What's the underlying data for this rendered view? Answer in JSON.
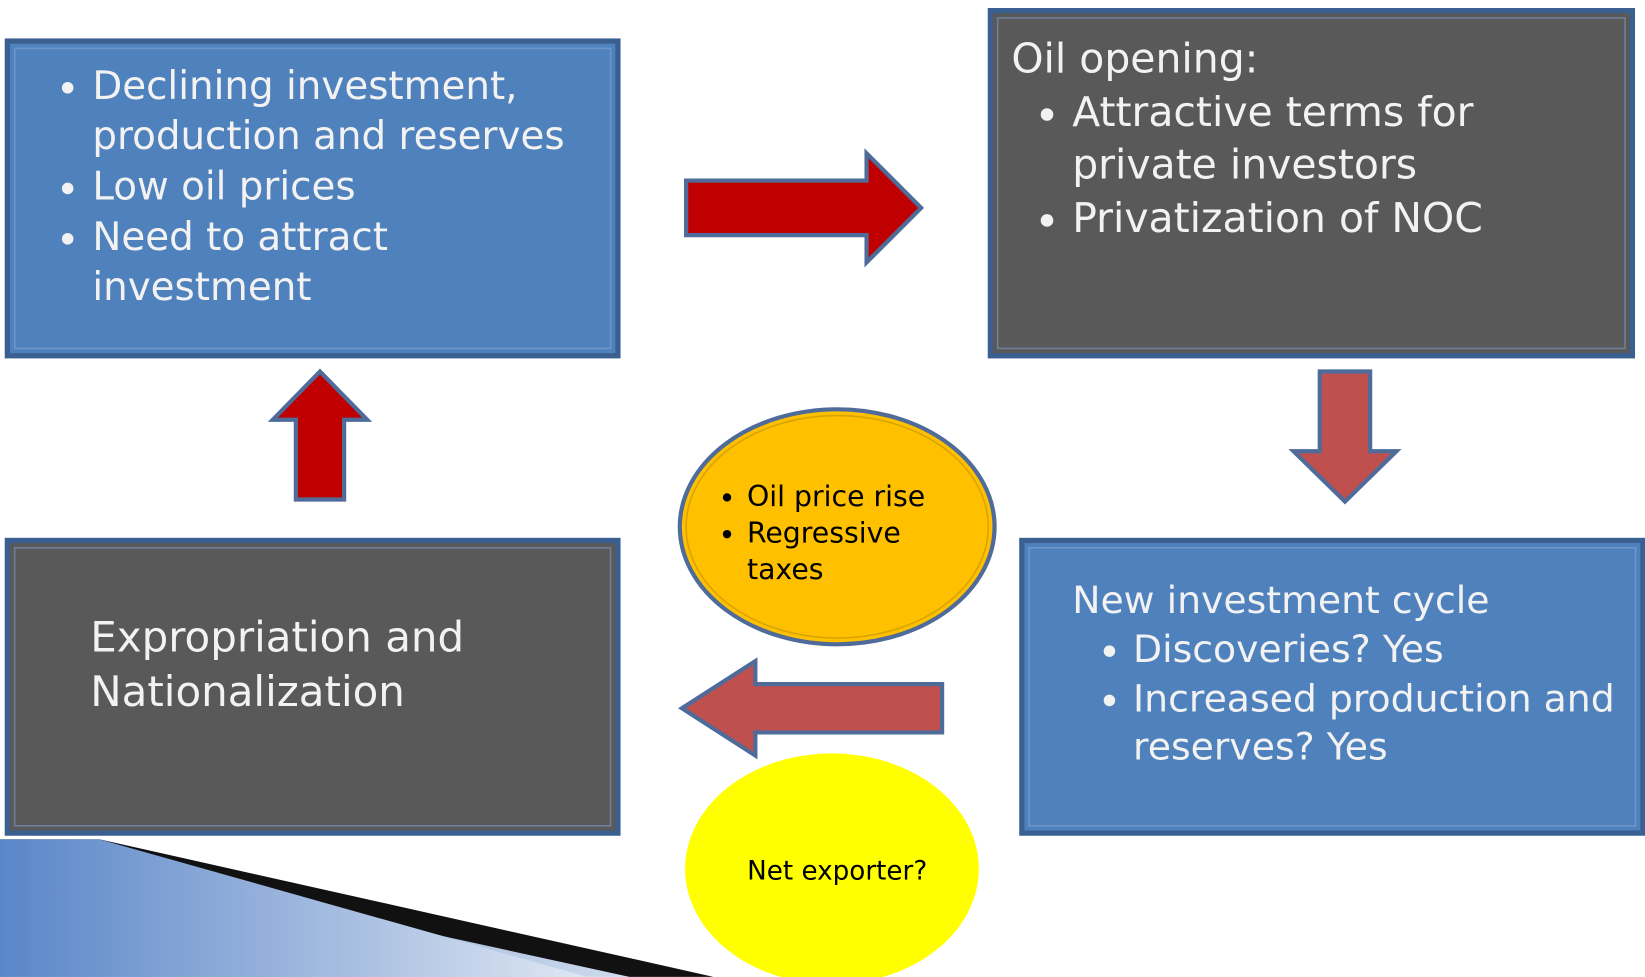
{
  "boxes": [
    {
      "items": [
        "Declining investment, production and reserves",
        "Low oil prices",
        "Need to attract investment"
      ]
    },
    {
      "title": "Oil opening:",
      "items": [
        "Attractive terms for private investors",
        "Privatization of NOC"
      ]
    },
    {
      "title": "New investment cycle",
      "items": [
        "Discoveries? Yes",
        "Increased production and reserves? Yes"
      ]
    },
    {
      "title": "Expropriation and Nationalization"
    }
  ],
  "ovals": [
    {
      "items": [
        "Oil price rise",
        "Regressive taxes"
      ]
    },
    {
      "label": "Net exporter?"
    }
  ]
}
